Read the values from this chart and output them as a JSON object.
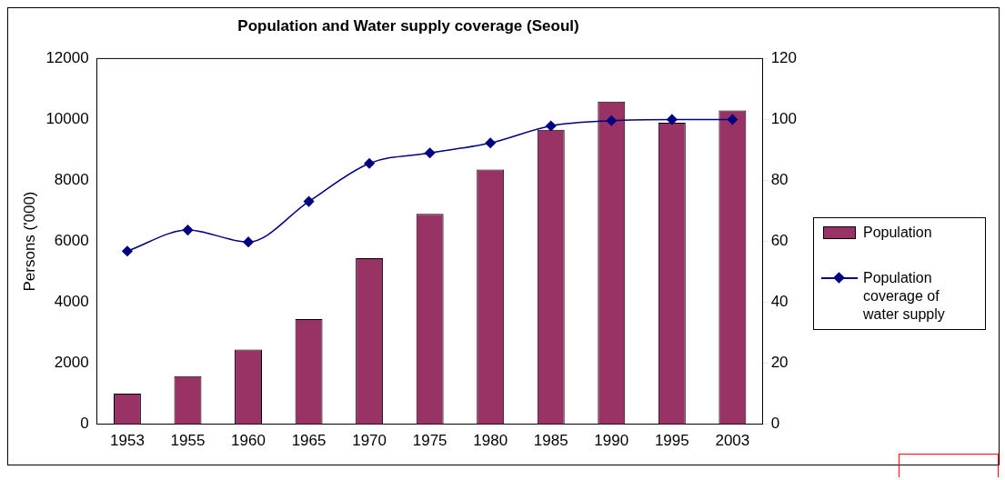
{
  "chart_data": {
    "type": "bar",
    "title": "Population and Water supply coverage (Seoul)",
    "ylabel": "Persons ('000)",
    "categories": [
      "1953",
      "1955",
      "1960",
      "1965",
      "1970",
      "1975",
      "1980",
      "1985",
      "1990",
      "1995",
      "2003"
    ],
    "series": [
      {
        "name": "Population",
        "color": "#993366",
        "values": [
          1000,
          1580,
          2450,
          3450,
          5450,
          6900,
          8360,
          9660,
          10590,
          9890,
          10300
        ]
      },
      {
        "name": "Population coverage of water supply",
        "type": "line",
        "axis": "y2",
        "color": "#000080",
        "marker": "diamond",
        "values": [
          56.8,
          63.7,
          59.8,
          73.1,
          85.6,
          89,
          92.3,
          97.9,
          99.6,
          100,
          100
        ]
      }
    ],
    "ylim": [
      0,
      12000
    ],
    "yticks": [
      0,
      2000,
      4000,
      6000,
      8000,
      10000,
      12000
    ],
    "y2lim": [
      0,
      120
    ],
    "y2ticks": [
      0,
      20,
      40,
      60,
      80,
      100,
      120
    ],
    "grid": false,
    "legend": "right"
  }
}
